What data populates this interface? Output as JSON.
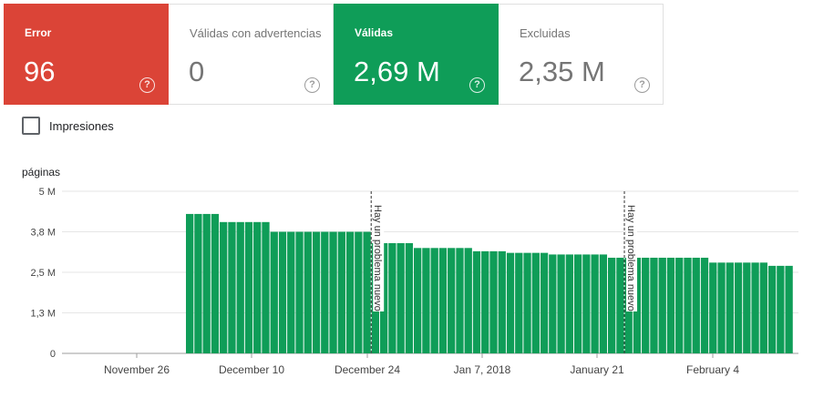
{
  "cards": [
    {
      "label": "Error",
      "value": "96",
      "help": "?"
    },
    {
      "label": "Válidas con advertencias",
      "value": "0",
      "help": "?"
    },
    {
      "label": "Válidas",
      "value": "2,69 M",
      "help": "?"
    },
    {
      "label": "Excluidas",
      "value": "2,35 M",
      "help": "?"
    }
  ],
  "impressions_label": "Impresiones",
  "colors": {
    "error": "#db4437",
    "valid": "#0f9d58",
    "bars": "#0f9d58"
  },
  "chart_data": {
    "type": "bar",
    "ylabel": "páginas",
    "y_ticks": [
      "0",
      "1,3 M",
      "2,5 M",
      "3,8 M",
      "5 M"
    ],
    "y_tick_values": [
      0,
      1.25,
      2.5,
      3.75,
      5
    ],
    "ylim": [
      0,
      5
    ],
    "x_tick_labels": [
      "November 26",
      "December 10",
      "December 24",
      "Jan 7, 2018",
      "January 21",
      "February 4"
    ],
    "grid": true,
    "empty_days_before_data": 18,
    "series": [
      {
        "values": [
          4.3,
          4.3,
          4.3,
          4.3,
          4.05,
          4.05,
          4.05,
          4.05,
          4.05,
          4.05,
          3.75,
          3.75,
          3.75,
          3.75,
          3.75,
          3.75,
          3.75,
          3.75,
          3.75,
          3.75,
          3.75,
          3.75,
          3.4,
          3.4,
          3.4,
          3.4,
          3.4,
          3.25,
          3.25,
          3.25,
          3.25,
          3.25,
          3.25,
          3.25,
          3.15,
          3.15,
          3.15,
          3.15,
          3.1,
          3.1,
          3.1,
          3.1,
          3.1,
          3.05,
          3.05,
          3.05,
          3.05,
          3.05,
          3.05,
          3.05,
          2.95,
          2.95,
          2.95,
          2.95,
          2.95,
          2.95,
          2.95,
          2.95,
          2.95,
          2.95,
          2.95,
          2.95,
          2.8,
          2.8,
          2.8,
          2.8,
          2.8,
          2.8,
          2.8,
          2.7,
          2.7,
          2.7
        ]
      }
    ],
    "annotations": [
      {
        "text": "Hay un problema nuevo",
        "after_index": 21
      },
      {
        "text": "Hay un problema nuevo",
        "after_index": 51
      }
    ]
  }
}
